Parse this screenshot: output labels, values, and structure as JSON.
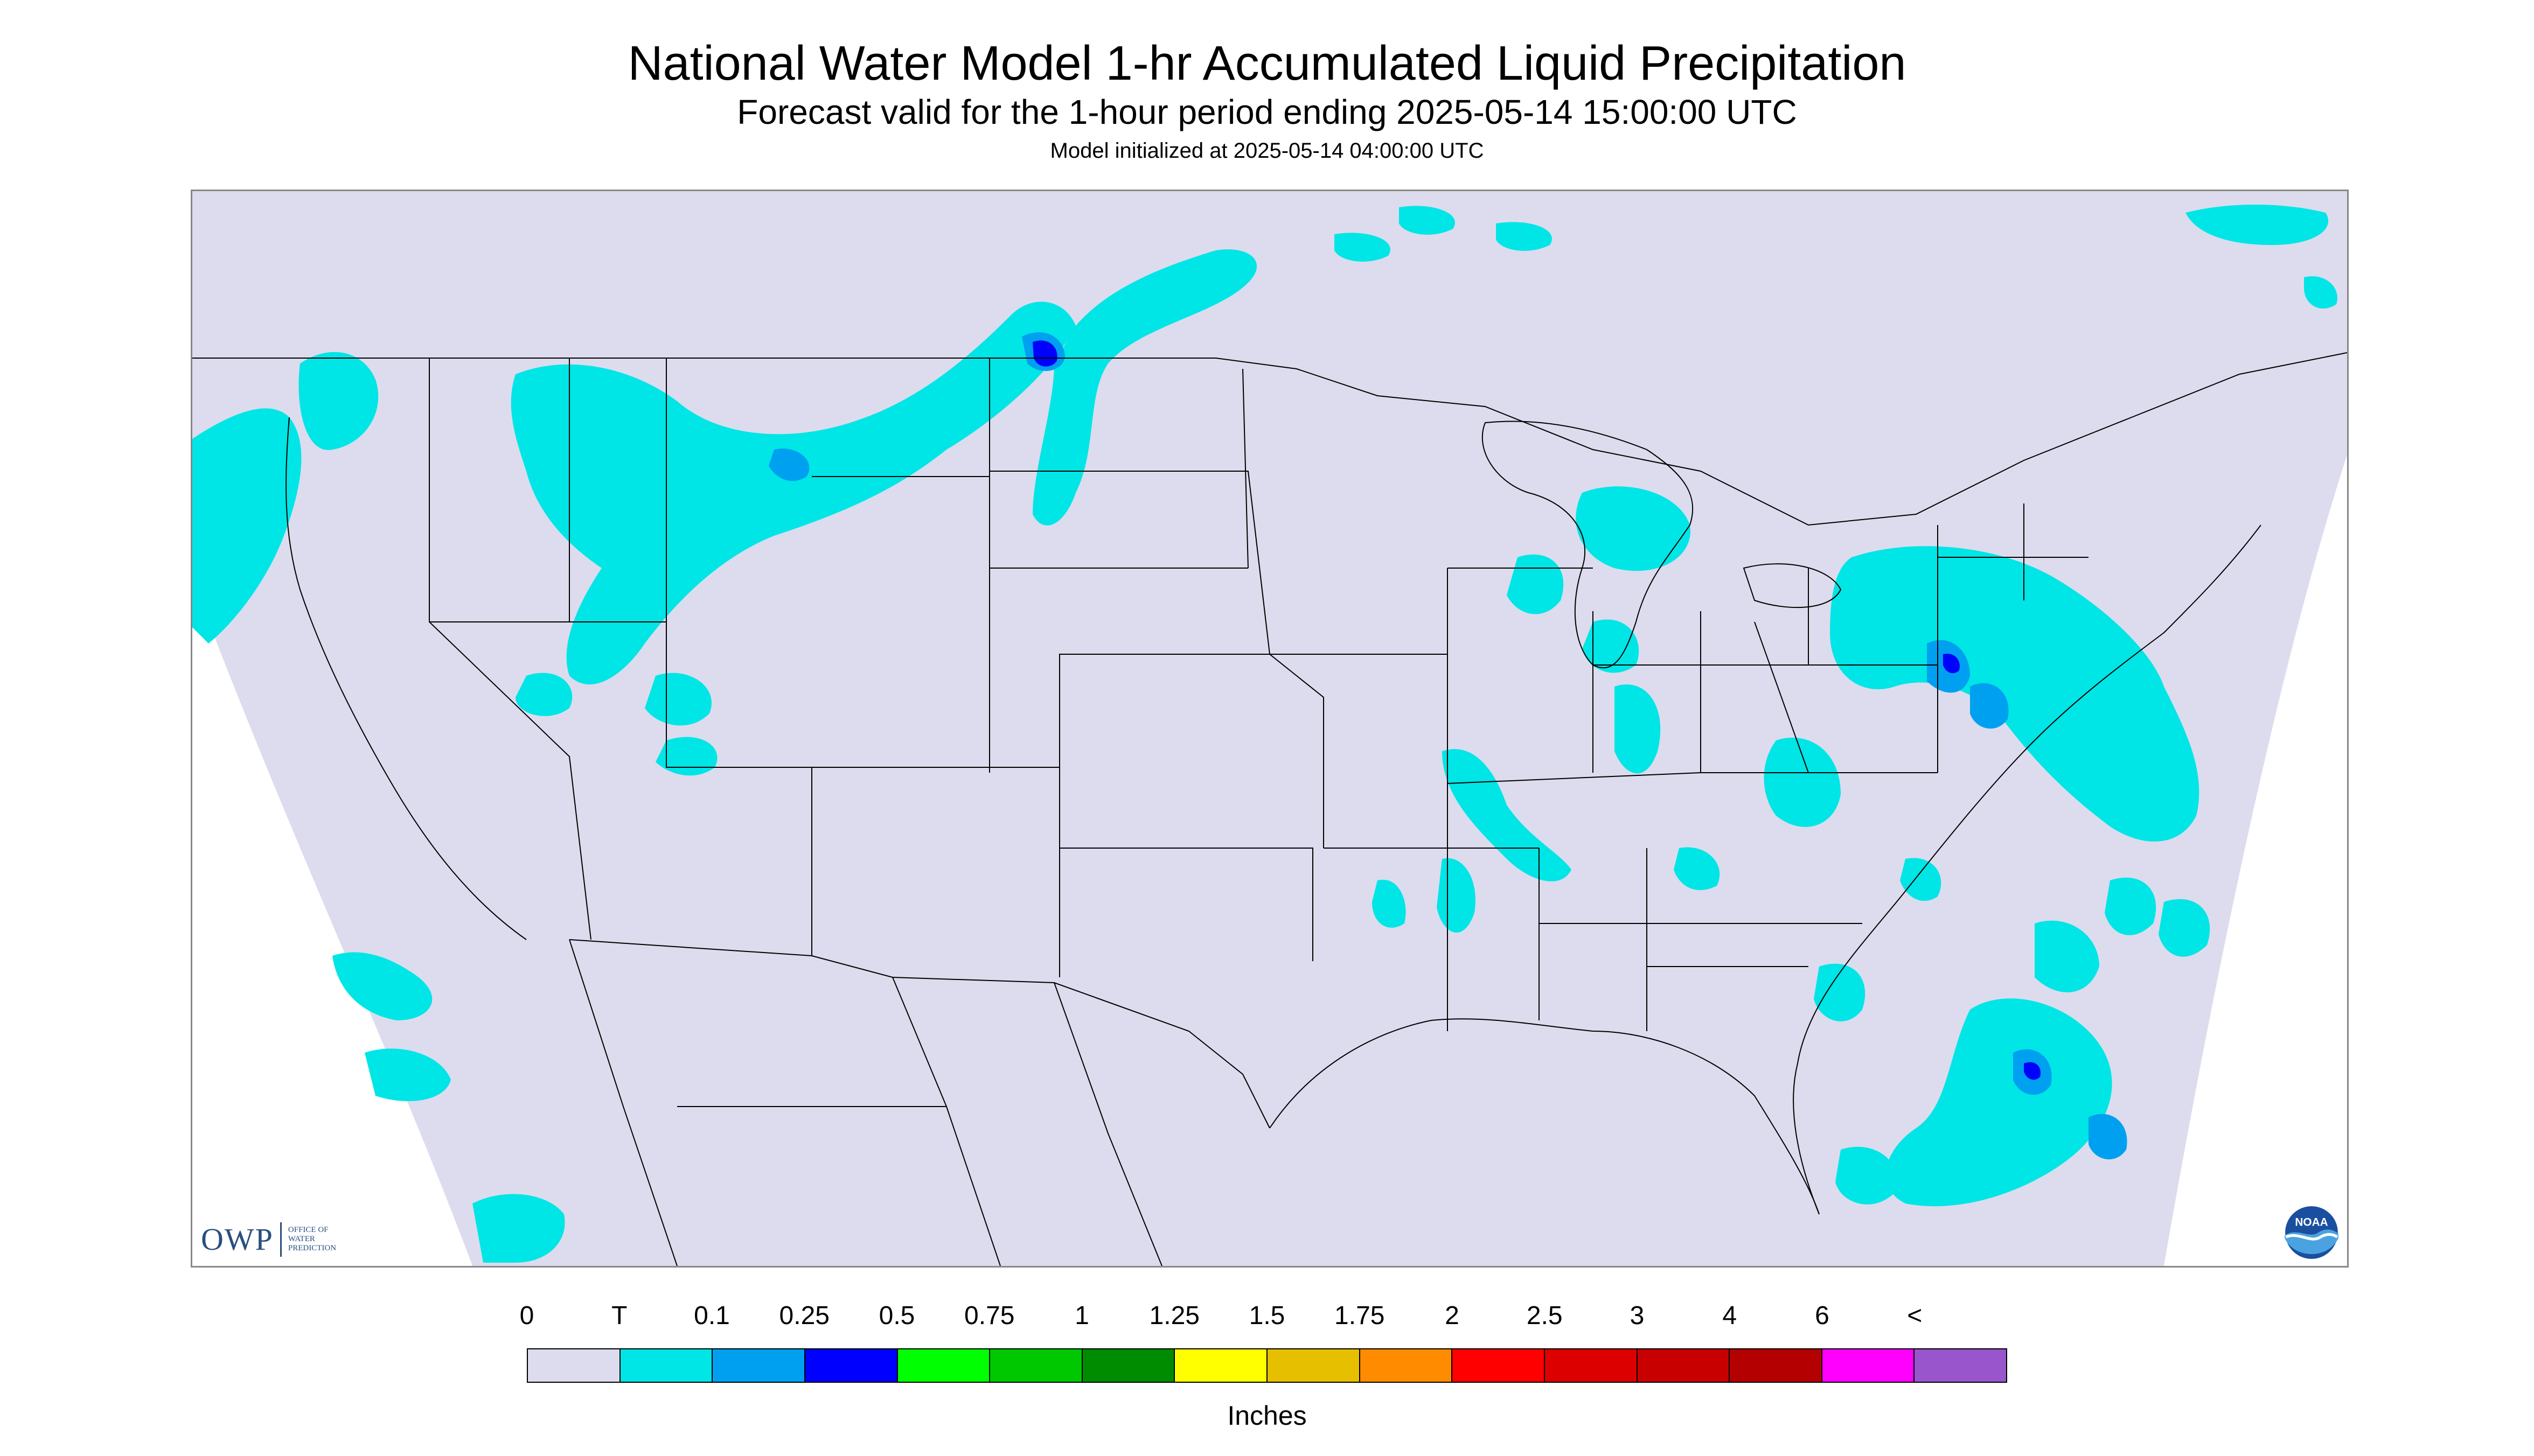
{
  "header": {
    "title": "National Water Model 1-hr Accumulated Liquid Precipitation",
    "subtitle": "Forecast valid for the 1-hour period ending 2025-05-14 15:00:00 UTC",
    "init": "Model initialized at 2025-05-14 04:00:00 UTC"
  },
  "map": {
    "background": "#dcdcee",
    "outside_domain": "#ffffff",
    "boundary_color": "#000000"
  },
  "logos": {
    "owp": {
      "text": "OWP",
      "sub1": "OFFICE OF",
      "sub2": "WATER",
      "sub3": "PREDICTION"
    },
    "noaa": {
      "text": "NOAA"
    }
  },
  "legend": {
    "labels": [
      "0",
      "T",
      "0.1",
      "0.25",
      "0.5",
      "0.75",
      "1",
      "1.25",
      "1.5",
      "1.75",
      "2",
      "2.5",
      "3",
      "4",
      "6",
      "<"
    ],
    "colors": [
      "#dcdcee",
      "#00e5e5",
      "#00a0f0",
      "#0000ff",
      "#00ff00",
      "#00c800",
      "#008c00",
      "#ffff00",
      "#e6c000",
      "#ff8c00",
      "#ff0000",
      "#dc0000",
      "#c80000",
      "#b40000",
      "#ff00ff",
      "#9955cc"
    ],
    "units": "Inches"
  }
}
